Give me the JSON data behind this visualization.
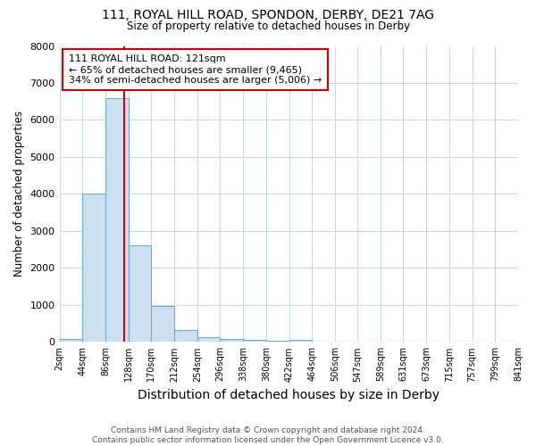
{
  "title1": "111, ROYAL HILL ROAD, SPONDON, DERBY, DE21 7AG",
  "title2": "Size of property relative to detached houses in Derby",
  "xlabel": "Distribution of detached houses by size in Derby",
  "ylabel": "Number of detached properties",
  "footnote": "Contains HM Land Registry data © Crown copyright and database right 2024.\nContains public sector information licensed under the Open Government Licence v3.0.",
  "bin_edges": [
    2,
    44,
    86,
    128,
    170,
    212,
    254,
    296,
    338,
    380,
    422,
    464,
    506,
    547,
    589,
    631,
    673,
    715,
    757,
    799,
    841
  ],
  "bar_heights": [
    80,
    4000,
    6600,
    2600,
    960,
    330,
    130,
    80,
    50,
    20,
    50,
    0,
    0,
    0,
    0,
    0,
    0,
    0,
    0,
    0
  ],
  "bar_color": "#cde0f0",
  "bar_edge_color": "#6aaed6",
  "red_line_x": 121,
  "red_line_color": "#cc0000",
  "annotation_text": "111 ROYAL HILL ROAD: 121sqm\n← 65% of detached houses are smaller (9,465)\n34% of semi-detached houses are larger (5,006) →",
  "annotation_box_color": "#ffffff",
  "annotation_box_edge_color": "#cc0000",
  "ylim": [
    0,
    8000
  ],
  "yticks": [
    0,
    1000,
    2000,
    3000,
    4000,
    5000,
    6000,
    7000,
    8000
  ],
  "grid_color": "#c8d8ea",
  "background_color": "#ffffff",
  "plot_bg_color": "#ffffff"
}
